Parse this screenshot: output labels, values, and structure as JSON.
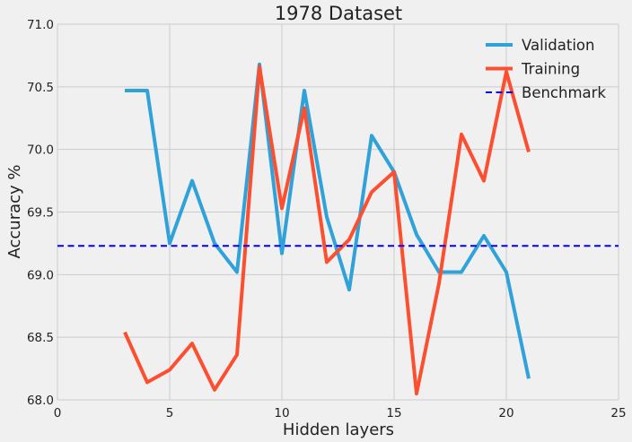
{
  "chart_data": {
    "type": "line",
    "title": "1978 Dataset",
    "xlabel": "Hidden layers",
    "ylabel": "Accuracy %",
    "xlim": [
      0,
      25
    ],
    "ylim": [
      68.0,
      71.0
    ],
    "xticks": [
      0,
      5,
      10,
      15,
      20,
      25
    ],
    "yticks": [
      68.0,
      68.5,
      69.0,
      69.5,
      70.0,
      70.5,
      71.0
    ],
    "ytick_labels": [
      "68.0",
      "68.5",
      "69.0",
      "69.5",
      "70.0",
      "70.5",
      "71.0"
    ],
    "grid": true,
    "legend_position": "top-right",
    "series": [
      {
        "name": "Validation",
        "color": "#30a2da",
        "style": "solid",
        "x": [
          3,
          4,
          5,
          6,
          7,
          8,
          9,
          10,
          11,
          12,
          13,
          14,
          15,
          16,
          17,
          18,
          19,
          20,
          21
        ],
        "values": [
          70.47,
          70.47,
          69.25,
          69.75,
          69.25,
          69.02,
          70.68,
          69.17,
          70.47,
          69.46,
          68.88,
          70.11,
          69.82,
          69.32,
          69.02,
          69.02,
          69.31,
          69.02,
          68.17
        ]
      },
      {
        "name": "Training",
        "color": "#fc4f30",
        "style": "solid",
        "x": [
          3,
          4,
          5,
          6,
          7,
          8,
          9,
          10,
          11,
          12,
          13,
          14,
          15,
          16,
          17,
          18,
          19,
          20,
          21
        ],
        "values": [
          68.54,
          68.14,
          68.24,
          68.45,
          68.08,
          68.36,
          70.66,
          69.53,
          70.33,
          69.1,
          69.28,
          69.66,
          69.82,
          68.05,
          68.93,
          70.12,
          69.75,
          70.62,
          69.98
        ]
      },
      {
        "name": "Benchmark",
        "color": "#0000ff",
        "style": "dashed",
        "y": 69.23
      }
    ]
  }
}
